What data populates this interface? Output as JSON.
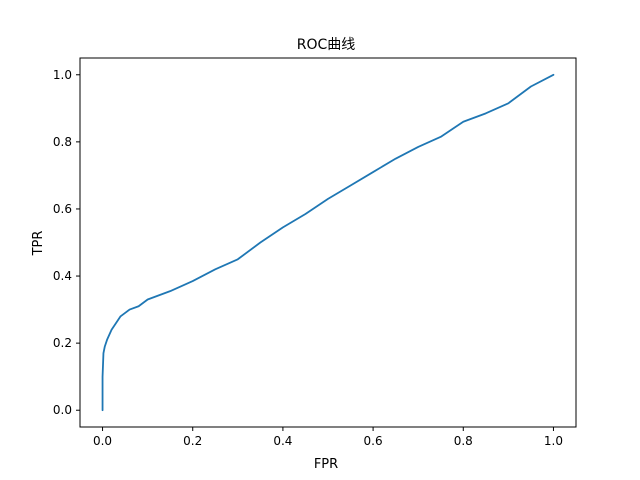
{
  "chart_data": {
    "type": "line",
    "title": "ROC曲线",
    "xlabel": "FPR",
    "ylabel": "TPR",
    "xlim": [
      -0.05,
      1.05
    ],
    "ylim": [
      -0.05,
      1.05
    ],
    "xticks": [
      0.0,
      0.2,
      0.4,
      0.6,
      0.8,
      1.0
    ],
    "yticks": [
      0.0,
      0.2,
      0.4,
      0.6,
      0.8,
      1.0
    ],
    "xtick_labels": [
      "0.0",
      "0.2",
      "0.4",
      "0.6",
      "0.8",
      "1.0"
    ],
    "ytick_labels": [
      "0.0",
      "0.2",
      "0.4",
      "0.6",
      "0.8",
      "1.0"
    ],
    "grid": false,
    "legend": "none",
    "series": [
      {
        "color": "#1f77b4",
        "x": [
          0.0,
          0.0,
          0.002,
          0.005,
          0.01,
          0.02,
          0.03,
          0.04,
          0.05,
          0.06,
          0.08,
          0.1,
          0.15,
          0.2,
          0.25,
          0.3,
          0.35,
          0.4,
          0.45,
          0.5,
          0.55,
          0.6,
          0.65,
          0.7,
          0.75,
          0.8,
          0.85,
          0.9,
          0.95,
          1.0
        ],
        "y": [
          0.0,
          0.1,
          0.17,
          0.19,
          0.21,
          0.24,
          0.26,
          0.28,
          0.29,
          0.3,
          0.31,
          0.33,
          0.355,
          0.385,
          0.42,
          0.45,
          0.5,
          0.545,
          0.585,
          0.63,
          0.67,
          0.71,
          0.75,
          0.785,
          0.815,
          0.86,
          0.885,
          0.915,
          0.965,
          1.0
        ]
      }
    ]
  }
}
